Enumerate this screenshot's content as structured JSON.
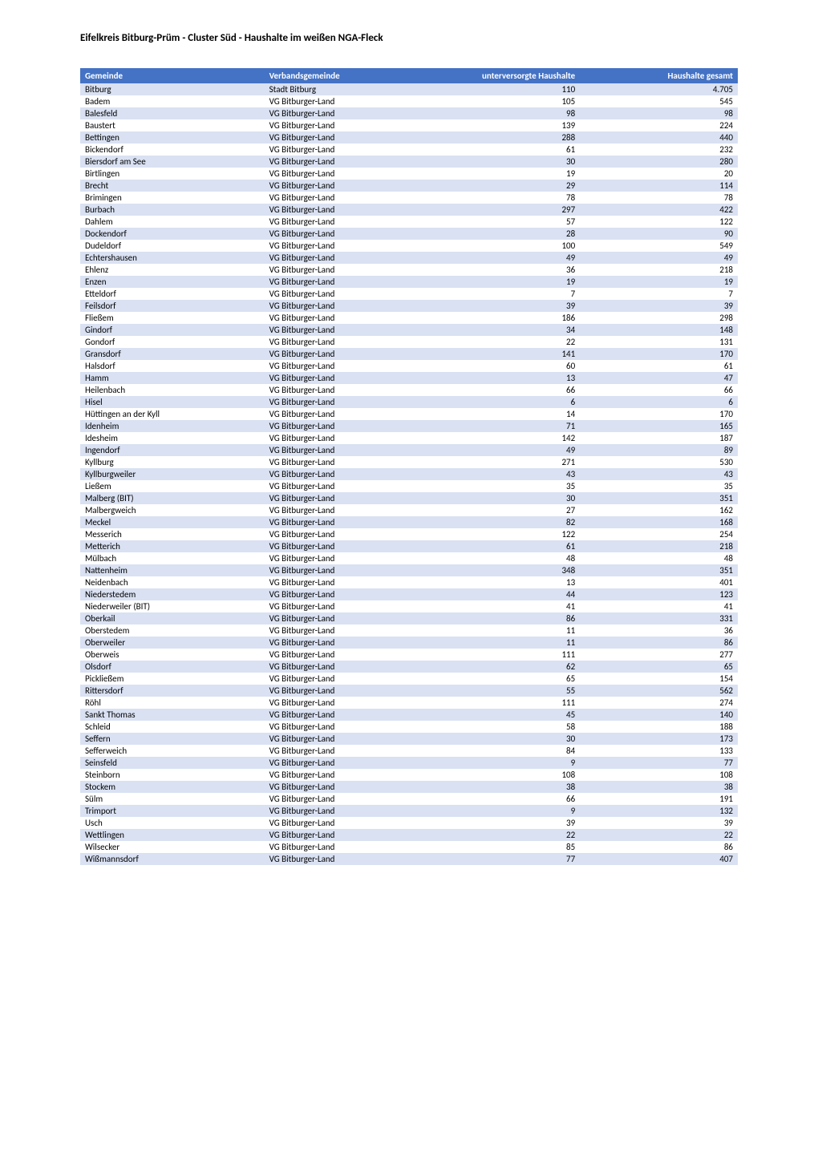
{
  "title": "Eifelkreis Bitburg-Prüm - Cluster Süd - Haushalte im weißen NGA-Fleck",
  "table": {
    "columns": [
      "Gemeinde",
      "Verbandsgemeinde",
      "unterversorgte Haushalte",
      "Haushalte gesamt"
    ],
    "rows": [
      [
        "Bitburg",
        "Stadt Bitburg",
        "110",
        "4.705"
      ],
      [
        "Badem",
        "VG Bitburger-Land",
        "105",
        "545"
      ],
      [
        "Balesfeld",
        "VG Bitburger-Land",
        "98",
        "98"
      ],
      [
        "Baustert",
        "VG Bitburger-Land",
        "139",
        "224"
      ],
      [
        "Bettingen",
        "VG Bitburger-Land",
        "288",
        "440"
      ],
      [
        "Bickendorf",
        "VG Bitburger-Land",
        "61",
        "232"
      ],
      [
        "Biersdorf am See",
        "VG Bitburger-Land",
        "30",
        "280"
      ],
      [
        "Birtlingen",
        "VG Bitburger-Land",
        "19",
        "20"
      ],
      [
        "Brecht",
        "VG Bitburger-Land",
        "29",
        "114"
      ],
      [
        "Brimingen",
        "VG Bitburger-Land",
        "78",
        "78"
      ],
      [
        "Burbach",
        "VG Bitburger-Land",
        "297",
        "422"
      ],
      [
        "Dahlem",
        "VG Bitburger-Land",
        "57",
        "122"
      ],
      [
        "Dockendorf",
        "VG Bitburger-Land",
        "28",
        "90"
      ],
      [
        "Dudeldorf",
        "VG Bitburger-Land",
        "100",
        "549"
      ],
      [
        "Echtershausen",
        "VG Bitburger-Land",
        "49",
        "49"
      ],
      [
        "Ehlenz",
        "VG Bitburger-Land",
        "36",
        "218"
      ],
      [
        "Enzen",
        "VG Bitburger-Land",
        "19",
        "19"
      ],
      [
        "Etteldorf",
        "VG Bitburger-Land",
        "7",
        "7"
      ],
      [
        "Feilsdorf",
        "VG Bitburger-Land",
        "39",
        "39"
      ],
      [
        "Fließem",
        "VG Bitburger-Land",
        "186",
        "298"
      ],
      [
        "Gindorf",
        "VG Bitburger-Land",
        "34",
        "148"
      ],
      [
        "Gondorf",
        "VG Bitburger-Land",
        "22",
        "131"
      ],
      [
        "Gransdorf",
        "VG Bitburger-Land",
        "141",
        "170"
      ],
      [
        "Halsdorf",
        "VG Bitburger-Land",
        "60",
        "61"
      ],
      [
        "Hamm",
        "VG Bitburger-Land",
        "13",
        "47"
      ],
      [
        "Heilenbach",
        "VG Bitburger-Land",
        "66",
        "66"
      ],
      [
        "Hisel",
        "VG Bitburger-Land",
        "6",
        "6"
      ],
      [
        "Hüttingen an der Kyll",
        "VG Bitburger-Land",
        "14",
        "170"
      ],
      [
        "Idenheim",
        "VG Bitburger-Land",
        "71",
        "165"
      ],
      [
        "Idesheim",
        "VG Bitburger-Land",
        "142",
        "187"
      ],
      [
        "Ingendorf",
        "VG Bitburger-Land",
        "49",
        "89"
      ],
      [
        "Kyllburg",
        "VG Bitburger-Land",
        "271",
        "530"
      ],
      [
        "Kyllburgweiler",
        "VG Bitburger-Land",
        "43",
        "43"
      ],
      [
        "Ließem",
        "VG Bitburger-Land",
        "35",
        "35"
      ],
      [
        "Malberg (BIT)",
        "VG Bitburger-Land",
        "30",
        "351"
      ],
      [
        "Malbergweich",
        "VG Bitburger-Land",
        "27",
        "162"
      ],
      [
        "Meckel",
        "VG Bitburger-Land",
        "82",
        "168"
      ],
      [
        "Messerich",
        "VG Bitburger-Land",
        "122",
        "254"
      ],
      [
        "Metterich",
        "VG Bitburger-Land",
        "61",
        "218"
      ],
      [
        "Mülbach",
        "VG Bitburger-Land",
        "48",
        "48"
      ],
      [
        "Nattenheim",
        "VG Bitburger-Land",
        "348",
        "351"
      ],
      [
        "Neidenbach",
        "VG Bitburger-Land",
        "13",
        "401"
      ],
      [
        "Niederstedem",
        "VG Bitburger-Land",
        "44",
        "123"
      ],
      [
        "Niederweiler (BIT)",
        "VG Bitburger-Land",
        "41",
        "41"
      ],
      [
        "Oberkail",
        "VG Bitburger-Land",
        "86",
        "331"
      ],
      [
        "Oberstedem",
        "VG Bitburger-Land",
        "11",
        "36"
      ],
      [
        "Oberweiler",
        "VG Bitburger-Land",
        "11",
        "86"
      ],
      [
        "Oberweis",
        "VG Bitburger-Land",
        "111",
        "277"
      ],
      [
        "Olsdorf",
        "VG Bitburger-Land",
        "62",
        "65"
      ],
      [
        "Pickließem",
        "VG Bitburger-Land",
        "65",
        "154"
      ],
      [
        "Rittersdorf",
        "VG Bitburger-Land",
        "55",
        "562"
      ],
      [
        "Röhl",
        "VG Bitburger-Land",
        "111",
        "274"
      ],
      [
        "Sankt Thomas",
        "VG Bitburger-Land",
        "45",
        "140"
      ],
      [
        "Schleid",
        "VG Bitburger-Land",
        "58",
        "188"
      ],
      [
        "Seffern",
        "VG Bitburger-Land",
        "30",
        "173"
      ],
      [
        "Sefferweich",
        "VG Bitburger-Land",
        "84",
        "133"
      ],
      [
        "Seinsfeld",
        "VG Bitburger-Land",
        "9",
        "77"
      ],
      [
        "Steinborn",
        "VG Bitburger-Land",
        "108",
        "108"
      ],
      [
        "Stockem",
        "VG Bitburger-Land",
        "38",
        "38"
      ],
      [
        "Sülm",
        "VG Bitburger-Land",
        "66",
        "191"
      ],
      [
        "Trimport",
        "VG Bitburger-Land",
        "9",
        "132"
      ],
      [
        "Usch",
        "VG Bitburger-Land",
        "39",
        "39"
      ],
      [
        "Wettlingen",
        "VG Bitburger-Land",
        "22",
        "22"
      ],
      [
        "Wilsecker",
        "VG Bitburger-Land",
        "85",
        "86"
      ],
      [
        "Wißmannsdorf",
        "VG Bitburger-Land",
        "77",
        "407"
      ]
    ],
    "header_bg": "#4472c4",
    "header_color": "#ffffff",
    "row_odd_bg": "#d9e1f2",
    "row_even_bg": "#ffffff",
    "font_size": 11
  }
}
